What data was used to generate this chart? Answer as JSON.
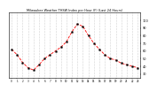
{
  "title": "Milwaukee Weather THSW Index per Hour (F) (Last 24 Hours)",
  "hours": [
    0,
    1,
    2,
    3,
    4,
    5,
    6,
    7,
    8,
    9,
    10,
    11,
    12,
    13,
    14,
    15,
    16,
    17,
    18,
    19,
    20,
    21,
    22,
    23
  ],
  "values": [
    62,
    55,
    45,
    38,
    35,
    42,
    50,
    55,
    60,
    65,
    72,
    85,
    95,
    92,
    80,
    70,
    62,
    55,
    50,
    48,
    44,
    42,
    40,
    38
  ],
  "line_color": "#ff0000",
  "marker_color": "#000000",
  "bg_color": "#ffffff",
  "grid_color": "#aaaaaa",
  "ylim_min": 25,
  "ylim_max": 110,
  "yticks": [
    30,
    40,
    50,
    60,
    70,
    80,
    90,
    100
  ],
  "xtick_labels": [
    "0",
    "1",
    "2",
    "3",
    "4",
    "5",
    "6",
    "7",
    "8",
    "9",
    "10",
    "11",
    "12",
    "13",
    "14",
    "15",
    "16",
    "17",
    "18",
    "19",
    "20",
    "21",
    "22",
    "23"
  ]
}
